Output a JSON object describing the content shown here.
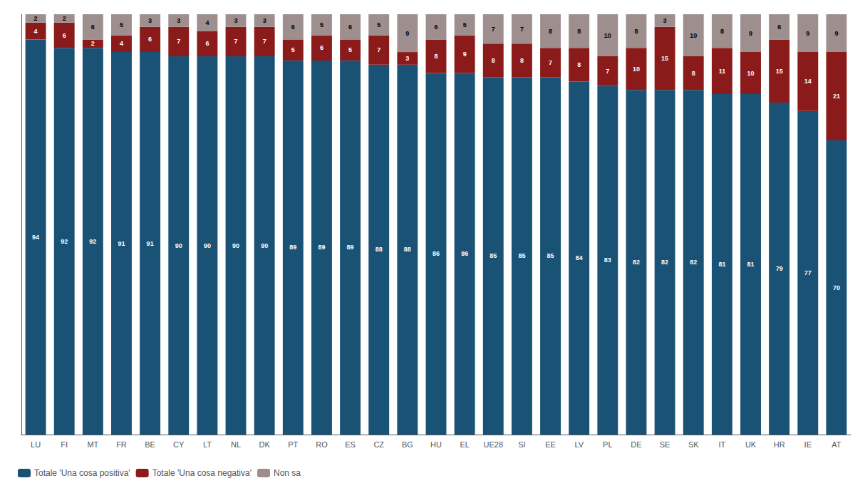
{
  "chart_data": {
    "type": "bar",
    "categories": [
      "LU",
      "FI",
      "MT",
      "FR",
      "BE",
      "CY",
      "LT",
      "NL",
      "DK",
      "PT",
      "RO",
      "ES",
      "CZ",
      "BG",
      "HU",
      "EL",
      "UE28",
      "SI",
      "EE",
      "LV",
      "PL",
      "DE",
      "SE",
      "SK",
      "IT",
      "UK",
      "HR",
      "IE",
      "AT"
    ],
    "series": [
      {
        "name": "Totale 'Una cosa positiva'",
        "color": "#1a5276",
        "values": [
          94,
          92,
          92,
          91,
          91,
          90,
          90,
          90,
          90,
          89,
          89,
          89,
          88,
          88,
          86,
          86,
          85,
          85,
          85,
          84,
          83,
          82,
          82,
          82,
          81,
          81,
          79,
          77,
          70
        ]
      },
      {
        "name": "Totale 'Una cosa negativa'",
        "color": "#8b1a1a",
        "values": [
          4,
          6,
          2,
          4,
          6,
          7,
          6,
          7,
          7,
          5,
          6,
          5,
          7,
          3,
          8,
          9,
          8,
          8,
          7,
          8,
          7,
          10,
          15,
          8,
          11,
          10,
          15,
          14,
          21
        ]
      },
      {
        "name": "Non sa",
        "color": "#9e8e8e",
        "values": [
          2,
          2,
          6,
          5,
          3,
          3,
          4,
          3,
          3,
          6,
          5,
          6,
          5,
          9,
          6,
          5,
          7,
          7,
          8,
          8,
          10,
          8,
          3,
          10,
          8,
          9,
          6,
          9,
          9
        ]
      }
    ],
    "stacked": true,
    "data_labels": true,
    "ylim": [
      0,
      100
    ],
    "tick_labels": "x",
    "grid": false,
    "legend": "lower left"
  }
}
